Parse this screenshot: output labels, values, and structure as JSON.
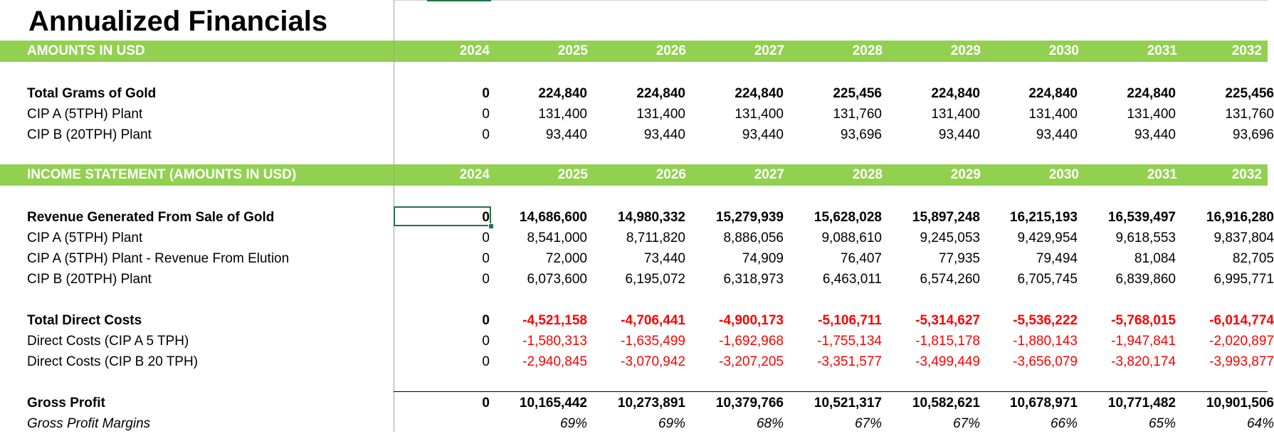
{
  "title": "Annualized Financials",
  "years": [
    "2024",
    "2025",
    "2026",
    "2027",
    "2028",
    "2029",
    "2030",
    "2031",
    "2032"
  ],
  "section1": {
    "header": "AMOUNTS IN USD",
    "rows": [
      {
        "label": "Total Grams of Gold",
        "values": [
          "0",
          "224,840",
          "224,840",
          "224,840",
          "225,456",
          "224,840",
          "224,840",
          "224,840",
          "225,456"
        ]
      },
      {
        "label": "CIP A (5TPH) Plant",
        "values": [
          "0",
          "131,400",
          "131,400",
          "131,400",
          "131,760",
          "131,400",
          "131,400",
          "131,400",
          "131,760"
        ]
      },
      {
        "label": "CIP B (20TPH) Plant",
        "values": [
          "0",
          "93,440",
          "93,440",
          "93,440",
          "93,696",
          "93,440",
          "93,440",
          "93,440",
          "93,696"
        ]
      }
    ]
  },
  "section2": {
    "header": "INCOME STATEMENT (AMOUNTS IN USD)",
    "rows": [
      {
        "label": "Revenue Generated From Sale of Gold",
        "values": [
          "0",
          "14,686,600",
          "14,980,332",
          "15,279,939",
          "15,628,028",
          "15,897,248",
          "16,215,193",
          "16,539,497",
          "16,916,280"
        ]
      },
      {
        "label": "CIP A (5TPH) Plant",
        "values": [
          "0",
          "8,541,000",
          "8,711,820",
          "8,886,056",
          "9,088,610",
          "9,245,053",
          "9,429,954",
          "9,618,553",
          "9,837,804"
        ]
      },
      {
        "label": "CIP A (5TPH) Plant - Revenue From Elution",
        "values": [
          "0",
          "72,000",
          "73,440",
          "74,909",
          "76,407",
          "77,935",
          "79,494",
          "81,084",
          "82,705"
        ]
      },
      {
        "label": "CIP B (20TPH) Plant",
        "values": [
          "0",
          "6,073,600",
          "6,195,072",
          "6,318,973",
          "6,463,011",
          "6,574,260",
          "6,705,745",
          "6,839,860",
          "6,995,771"
        ]
      },
      {
        "label": "Total Direct Costs",
        "values": [
          "0",
          "-4,521,158",
          "-4,706,441",
          "-4,900,173",
          "-5,106,711",
          "-5,314,627",
          "-5,536,222",
          "-5,768,015",
          "-6,014,774"
        ]
      },
      {
        "label": "Direct Costs (CIP A 5 TPH)",
        "values": [
          "0",
          "-1,580,313",
          "-1,635,499",
          "-1,692,968",
          "-1,755,134",
          "-1,815,178",
          "-1,880,143",
          "-1,947,841",
          "-2,020,897"
        ]
      },
      {
        "label": "Direct Costs (CIP B 20 TPH)",
        "values": [
          "0",
          "-2,940,845",
          "-3,070,942",
          "-3,207,205",
          "-3,351,577",
          "-3,499,449",
          "-3,656,079",
          "-3,820,174",
          "-3,993,877"
        ]
      },
      {
        "label": "Gross Profit",
        "values": [
          "0",
          "10,165,442",
          "10,273,891",
          "10,379,766",
          "10,521,317",
          "10,582,621",
          "10,678,971",
          "10,771,482",
          "10,901,506"
        ]
      },
      {
        "label": "Gross Profit Margins",
        "values": [
          "",
          "69%",
          "69%",
          "68%",
          "67%",
          "67%",
          "66%",
          "65%",
          "64%"
        ]
      }
    ]
  },
  "colors": {
    "band": "#92d050",
    "negative": "#ff0000",
    "selection": "#217346"
  }
}
